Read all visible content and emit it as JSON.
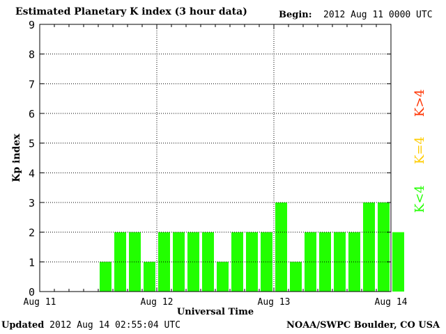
{
  "header": {
    "title": "Estimated Planetary K index (3 hour data)",
    "begin_label": "Begin:",
    "begin_value": "2012 Aug 11 0000 UTC"
  },
  "footer": {
    "updated_label": "Updated",
    "updated_value": "2012 Aug 14 02:55:04 UTC",
    "source": "NOAA/SWPC Boulder, CO USA"
  },
  "colors": {
    "bar_low": "#22ff00",
    "k_equal": "#ffcc00",
    "k_high": "#ff3300",
    "grid": "#000000"
  },
  "chart_data": {
    "type": "bar",
    "title": "Estimated Planetary K index (3 hour data)",
    "xlabel": "Universal Time",
    "ylabel": "Kp index",
    "ylim": [
      0,
      9
    ],
    "yticks": [
      0,
      1,
      2,
      3,
      4,
      5,
      6,
      7,
      8,
      9
    ],
    "x_tick_labels": [
      "Aug 11",
      "Aug 12",
      "Aug 13",
      "Aug 14"
    ],
    "grid": true,
    "legend": [
      {
        "label": "K<4",
        "color": "#22ff00"
      },
      {
        "label": "K=4",
        "color": "#ffcc00"
      },
      {
        "label": "K>4",
        "color": "#ff3300"
      }
    ],
    "legend_position": "right",
    "intervals_per_day": 8,
    "values": [
      null,
      null,
      null,
      null,
      1,
      2,
      2,
      1,
      2,
      2,
      2,
      2,
      1,
      2,
      2,
      2,
      3,
      1,
      2,
      2,
      2,
      2,
      3,
      3,
      2
    ]
  }
}
